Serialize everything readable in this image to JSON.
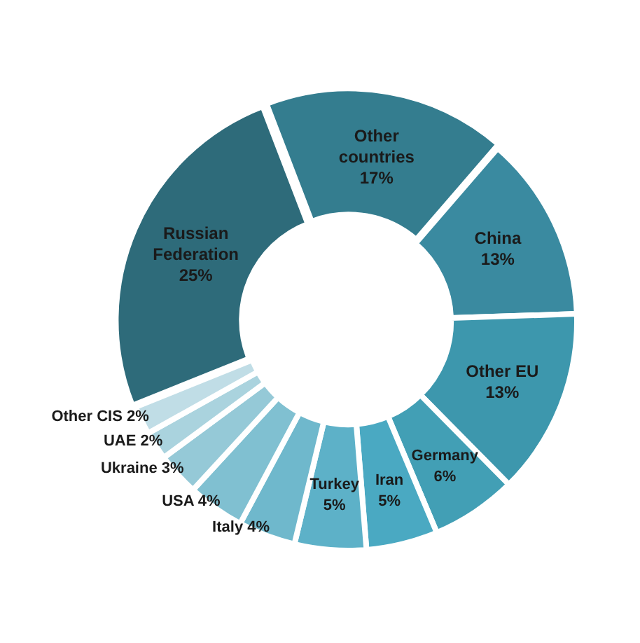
{
  "chart_data": {
    "type": "donut",
    "categories": [
      "Other countries",
      "China",
      "Other EU",
      "Germany",
      "Iran",
      "Turkey",
      "Italy",
      "USA",
      "Ukraine",
      "UAE",
      "Other CIS",
      "Russian Federation"
    ],
    "values": [
      17,
      13,
      13,
      6,
      5,
      5,
      4,
      4,
      3,
      2,
      2,
      25
    ],
    "colors": [
      "#347d8f",
      "#3a8aa0",
      "#3d97ad",
      "#429fb5",
      "#4aa9c2",
      "#5db1c8",
      "#6fb8cc",
      "#80c0d1",
      "#95c9d7",
      "#aad3de",
      "#c0dde6",
      "#2e6b7a"
    ],
    "value_labels": [
      "17%",
      "13%",
      "13%",
      "6%",
      "5%",
      "5%",
      "4%",
      "4%",
      "3%",
      "2%",
      "2%",
      "25%"
    ],
    "legend": false
  }
}
